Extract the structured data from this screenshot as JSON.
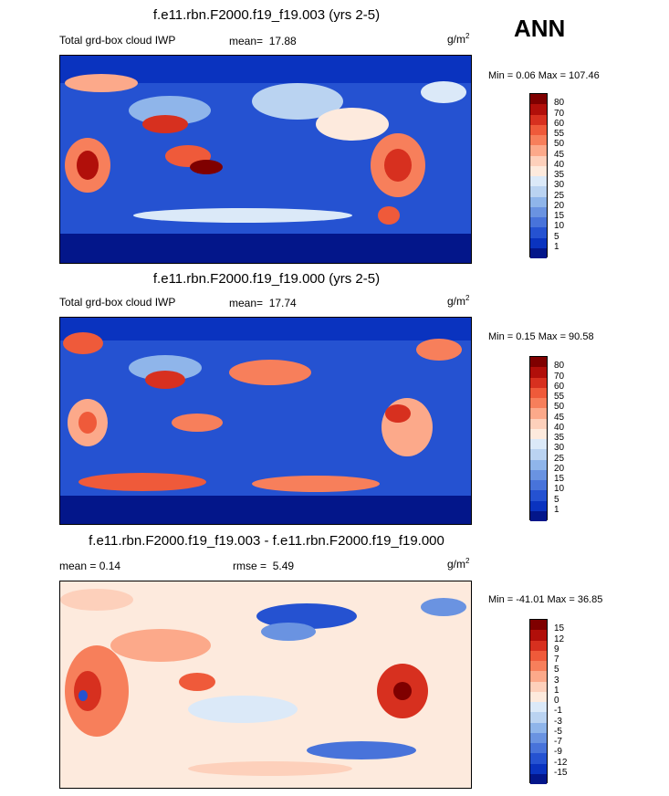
{
  "season": "ANN",
  "panels": [
    {
      "title": "f.e11.rbn.F2000.f19_f19.003 (yrs 2-5)",
      "left_label": "Total grd-box cloud IWP",
      "stat1_label": "mean=",
      "stat1_value": "17.88",
      "stat2": "",
      "units_base": "g/m",
      "units_exp": "2",
      "minmax": "Min =   0.06 Max = 107.46",
      "levels": [
        "80",
        "70",
        "60",
        "55",
        "50",
        "45",
        "40",
        "35",
        "30",
        "25",
        "20",
        "15",
        "10",
        "5",
        "1"
      ],
      "colors": [
        "#7f0000",
        "#b10f0a",
        "#d7301f",
        "#ef5a3a",
        "#f77f5b",
        "#fca98a",
        "#fdd0bb",
        "#fdeadd",
        "#dbe9f8",
        "#bad3f1",
        "#8fb5ea",
        "#6a93e1",
        "#4873da",
        "#2552d1",
        "#0a33bf",
        "#03168a"
      ]
    },
    {
      "title": "f.e11.rbn.F2000.f19_f19.000 (yrs 2-5)",
      "left_label": "Total grd-box cloud IWP",
      "stat1_label": "mean=",
      "stat1_value": "17.74",
      "stat2": "",
      "units_base": "g/m",
      "units_exp": "2",
      "minmax": "Min =   0.15 Max =  90.58",
      "levels": [
        "80",
        "70",
        "60",
        "55",
        "50",
        "45",
        "40",
        "35",
        "30",
        "25",
        "20",
        "15",
        "10",
        "5",
        "1"
      ],
      "colors": [
        "#7f0000",
        "#b10f0a",
        "#d7301f",
        "#ef5a3a",
        "#f77f5b",
        "#fca98a",
        "#fdd0bb",
        "#fdeadd",
        "#dbe9f8",
        "#bad3f1",
        "#8fb5ea",
        "#6a93e1",
        "#4873da",
        "#2552d1",
        "#0a33bf",
        "#03168a"
      ]
    },
    {
      "title": "f.e11.rbn.F2000.f19_f19.003 - f.e11.rbn.F2000.f19_f19.000",
      "left_label": "mean =   0.14",
      "stat1_label": "rmse =",
      "stat1_value": "5.49",
      "stat2": "",
      "units_base": "g/m",
      "units_exp": "2",
      "minmax": "Min = -41.01 Max =  36.85",
      "levels": [
        "15",
        "12",
        "9",
        "7",
        "5",
        "3",
        "1",
        "0",
        "-1",
        "-3",
        "-5",
        "-7",
        "-9",
        "-12",
        "-15"
      ],
      "colors": [
        "#7f0000",
        "#b10f0a",
        "#d7301f",
        "#ef5a3a",
        "#f77f5b",
        "#fca98a",
        "#fdd0bb",
        "#fdeadd",
        "#dbe9f8",
        "#bad3f1",
        "#8fb5ea",
        "#6a93e1",
        "#4873da",
        "#2552d1",
        "#0a33bf",
        "#03168a"
      ]
    }
  ],
  "chart_data": [
    {
      "type": "heatmap",
      "title": "f.e11.rbn.F2000.f19_f19.003 (yrs 2-5)",
      "variable": "Total grd-box cloud IWP",
      "units": "g/m2",
      "mean": 17.88,
      "min": 0.06,
      "max": 107.46,
      "contour_levels": [
        1,
        5,
        10,
        15,
        20,
        25,
        30,
        35,
        40,
        45,
        50,
        55,
        60,
        70,
        80
      ]
    },
    {
      "type": "heatmap",
      "title": "f.e11.rbn.F2000.f19_f19.000 (yrs 2-5)",
      "variable": "Total grd-box cloud IWP",
      "units": "g/m2",
      "mean": 17.74,
      "min": 0.15,
      "max": 90.58,
      "contour_levels": [
        1,
        5,
        10,
        15,
        20,
        25,
        30,
        35,
        40,
        45,
        50,
        55,
        60,
        70,
        80
      ]
    },
    {
      "type": "heatmap",
      "title": "f.e11.rbn.F2000.f19_f19.003 - f.e11.rbn.F2000.f19_f19.000",
      "units": "g/m2",
      "mean": 0.14,
      "rmse": 5.49,
      "min": -41.01,
      "max": 36.85,
      "contour_levels": [
        -15,
        -12,
        -9,
        -7,
        -5,
        -3,
        -1,
        0,
        1,
        3,
        5,
        7,
        9,
        12,
        15
      ]
    }
  ]
}
